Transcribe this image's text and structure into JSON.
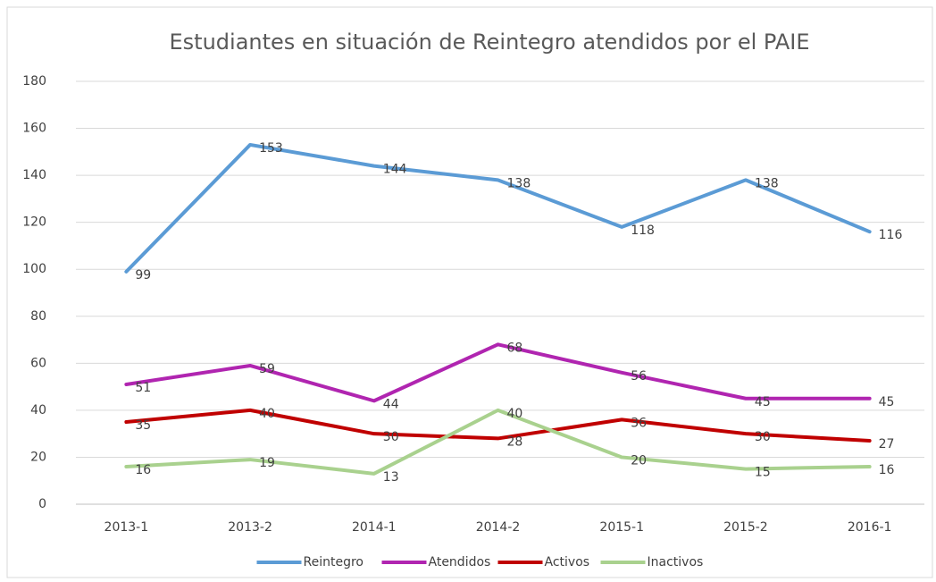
{
  "chart_data": {
    "type": "line",
    "title": "Estudiantes en situación de Reintegro atendidos por el PAIE",
    "categories": [
      "2013-1",
      "2013-2",
      "2014-1",
      "2014-2",
      "2015-1",
      "2015-2",
      "2016-1"
    ],
    "series": [
      {
        "name": "Reintegro",
        "color": "#5b9bd5",
        "values": [
          99,
          153,
          144,
          138,
          118,
          138,
          116
        ]
      },
      {
        "name": "Atendidos",
        "color": "#b025b0",
        "values": [
          51,
          59,
          44,
          68,
          56,
          45,
          45
        ]
      },
      {
        "name": "Activos",
        "color": "#c00000",
        "values": [
          35,
          40,
          30,
          28,
          36,
          30,
          27
        ]
      },
      {
        "name": "Inactivos",
        "color": "#a9d18e",
        "values": [
          16,
          19,
          13,
          40,
          20,
          15,
          16
        ]
      }
    ],
    "ylim": [
      0,
      180
    ],
    "yticks": [
      0,
      20,
      40,
      60,
      80,
      100,
      120,
      140,
      160,
      180
    ],
    "grid": true,
    "legend": "bottom"
  }
}
